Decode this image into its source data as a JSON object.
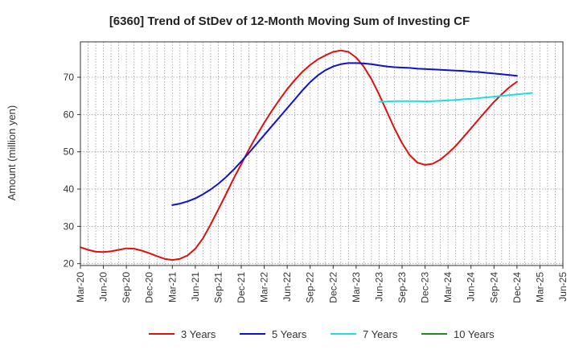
{
  "chart_data": {
    "type": "line",
    "title": "[6360]  Trend of StDev of 12-Month Moving Sum of Investing CF",
    "xlabel": "",
    "ylabel": "Amount (million yen)",
    "ylim": [
      19.5,
      79.5
    ],
    "y_ticks": [
      20,
      30,
      40,
      50,
      60,
      70
    ],
    "x_ticks": [
      "Mar-20",
      "Jun-20",
      "Sep-20",
      "Dec-20",
      "Mar-21",
      "Jun-21",
      "Sep-21",
      "Dec-21",
      "Mar-22",
      "Jun-22",
      "Sep-22",
      "Dec-22",
      "Mar-23",
      "Jun-23",
      "Sep-23",
      "Dec-23",
      "Mar-24",
      "Jun-24",
      "Sep-24",
      "Dec-24",
      "Mar-25",
      "Jun-25"
    ],
    "grid": true,
    "legend_position": "bottom",
    "series": [
      {
        "name": "3 Years",
        "color": "#dd1111",
        "points": [
          [
            "Mar-20",
            24.4
          ],
          [
            "Apr-20",
            23.7
          ],
          [
            "May-20",
            23.2
          ],
          [
            "Jun-20",
            23.1
          ],
          [
            "Jul-20",
            23.3
          ],
          [
            "Aug-20",
            23.7
          ],
          [
            "Sep-20",
            24.1
          ],
          [
            "Oct-20",
            24.0
          ],
          [
            "Nov-20",
            23.5
          ],
          [
            "Dec-20",
            22.8
          ],
          [
            "Jan-21",
            22.0
          ],
          [
            "Feb-21",
            21.3
          ],
          [
            "Mar-21",
            21.0
          ],
          [
            "Apr-21",
            21.3
          ],
          [
            "May-21",
            22.2
          ],
          [
            "Jun-21",
            24.0
          ],
          [
            "Jul-21",
            26.8
          ],
          [
            "Aug-21",
            30.5
          ],
          [
            "Sep-21",
            34.5
          ],
          [
            "Oct-21",
            38.6
          ],
          [
            "Nov-21",
            42.8
          ],
          [
            "Dec-21",
            46.7
          ],
          [
            "Jan-22",
            50.6
          ],
          [
            "Feb-22",
            54.3
          ],
          [
            "Mar-22",
            57.8
          ],
          [
            "Apr-22",
            61.0
          ],
          [
            "May-22",
            64.0
          ],
          [
            "Jun-22",
            66.8
          ],
          [
            "Jul-22",
            69.3
          ],
          [
            "Aug-22",
            71.5
          ],
          [
            "Sep-22",
            73.3
          ],
          [
            "Oct-22",
            74.8
          ],
          [
            "Nov-22",
            75.9
          ],
          [
            "Dec-22",
            76.8
          ],
          [
            "Jan-23",
            77.2
          ],
          [
            "Feb-23",
            76.8
          ],
          [
            "Mar-23",
            75.3
          ],
          [
            "Apr-23",
            72.8
          ],
          [
            "May-23",
            69.5
          ],
          [
            "Jun-23",
            65.4
          ],
          [
            "Jul-23",
            60.8
          ],
          [
            "Aug-23",
            56.3
          ],
          [
            "Sep-23",
            52.3
          ],
          [
            "Oct-23",
            49.1
          ],
          [
            "Nov-23",
            47.1
          ],
          [
            "Dec-23",
            46.5
          ],
          [
            "Jan-24",
            46.8
          ],
          [
            "Feb-24",
            47.9
          ],
          [
            "Mar-24",
            49.6
          ],
          [
            "Apr-24",
            51.6
          ],
          [
            "May-24",
            53.9
          ],
          [
            "Jun-24",
            56.3
          ],
          [
            "Jul-24",
            58.7
          ],
          [
            "Aug-24",
            61.1
          ],
          [
            "Sep-24",
            63.4
          ],
          [
            "Oct-24",
            65.4
          ],
          [
            "Nov-24",
            67.3
          ],
          [
            "Dec-24",
            68.8
          ]
        ]
      },
      {
        "name": "5 Years",
        "color": "#1111cc",
        "points": [
          [
            "Mar-21",
            35.7
          ],
          [
            "Apr-21",
            36.1
          ],
          [
            "May-21",
            36.7
          ],
          [
            "Jun-21",
            37.5
          ],
          [
            "Jul-21",
            38.6
          ],
          [
            "Aug-21",
            39.9
          ],
          [
            "Sep-21",
            41.4
          ],
          [
            "Oct-21",
            43.2
          ],
          [
            "Nov-21",
            45.2
          ],
          [
            "Dec-21",
            47.4
          ],
          [
            "Jan-22",
            49.7
          ],
          [
            "Feb-22",
            52.1
          ],
          [
            "Mar-22",
            54.5
          ],
          [
            "Apr-22",
            56.9
          ],
          [
            "May-22",
            59.3
          ],
          [
            "Jun-22",
            61.7
          ],
          [
            "Jul-22",
            64.1
          ],
          [
            "Aug-22",
            66.5
          ],
          [
            "Sep-22",
            68.7
          ],
          [
            "Oct-22",
            70.5
          ],
          [
            "Nov-22",
            71.9
          ],
          [
            "Dec-22",
            72.9
          ],
          [
            "Jan-23",
            73.5
          ],
          [
            "Feb-23",
            73.8
          ],
          [
            "Mar-23",
            73.8
          ],
          [
            "Apr-23",
            73.7
          ],
          [
            "May-23",
            73.5
          ],
          [
            "Jun-23",
            73.2
          ],
          [
            "Jul-23",
            72.9
          ],
          [
            "Aug-23",
            72.7
          ],
          [
            "Sep-23",
            72.6
          ],
          [
            "Oct-23",
            72.5
          ],
          [
            "Nov-23",
            72.3
          ],
          [
            "Dec-23",
            72.2
          ],
          [
            "Jan-24",
            72.1
          ],
          [
            "Feb-24",
            72.0
          ],
          [
            "Mar-24",
            71.9
          ],
          [
            "Apr-24",
            71.8
          ],
          [
            "May-24",
            71.7
          ],
          [
            "Jun-24",
            71.5
          ],
          [
            "Jul-24",
            71.4
          ],
          [
            "Aug-24",
            71.2
          ],
          [
            "Sep-24",
            71.0
          ],
          [
            "Oct-24",
            70.8
          ],
          [
            "Nov-24",
            70.6
          ],
          [
            "Dec-24",
            70.4
          ]
        ]
      },
      {
        "name": "7 Years",
        "color": "#22dddd",
        "points": [
          [
            "Jun-23",
            63.4
          ],
          [
            "Jul-23",
            63.5
          ],
          [
            "Aug-23",
            63.6
          ],
          [
            "Sep-23",
            63.6
          ],
          [
            "Oct-23",
            63.6
          ],
          [
            "Nov-23",
            63.6
          ],
          [
            "Dec-23",
            63.5
          ],
          [
            "Jan-24",
            63.6
          ],
          [
            "Feb-24",
            63.7
          ],
          [
            "Mar-24",
            63.8
          ],
          [
            "Apr-24",
            63.9
          ],
          [
            "May-24",
            64.1
          ],
          [
            "Jun-24",
            64.2
          ],
          [
            "Jul-24",
            64.4
          ],
          [
            "Aug-24",
            64.6
          ],
          [
            "Sep-24",
            64.8
          ],
          [
            "Oct-24",
            65.0
          ],
          [
            "Nov-24",
            65.2
          ],
          [
            "Dec-24",
            65.4
          ],
          [
            "Jan-25",
            65.6
          ],
          [
            "Feb-25",
            65.8
          ]
        ]
      },
      {
        "name": "10 Years",
        "color": "#228822",
        "points": []
      }
    ]
  }
}
